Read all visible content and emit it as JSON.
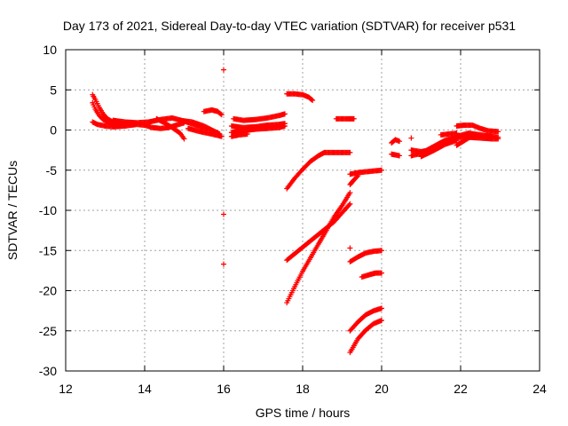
{
  "chart_data": {
    "type": "scatter",
    "title": "Day 173 of 2021, Sidereal Day-to-day VTEC variation (SDTVAR) for receiver p531",
    "xlabel": "GPS time / hours",
    "ylabel": "SDTVAR / TECUs",
    "xlim": [
      12,
      24
    ],
    "ylim": [
      -30,
      10
    ],
    "xticks": [
      12,
      14,
      16,
      18,
      20,
      22,
      24
    ],
    "yticks": [
      -30,
      -25,
      -20,
      -15,
      -10,
      -5,
      0,
      5,
      10
    ],
    "grid": true,
    "marker": "+",
    "color": "#ff0000",
    "segments": [
      [
        [
          12.68,
          4.4
        ],
        [
          12.75,
          3.8
        ],
        [
          12.85,
          2.8
        ],
        [
          12.95,
          2.0
        ],
        [
          13.05,
          1.4
        ],
        [
          13.2,
          1.0
        ],
        [
          13.4,
          0.8
        ],
        [
          13.6,
          0.9
        ]
      ],
      [
        [
          12.68,
          3.4
        ],
        [
          12.75,
          2.6
        ],
        [
          12.85,
          1.8
        ],
        [
          12.95,
          1.3
        ],
        [
          13.1,
          0.9
        ],
        [
          13.3,
          0.6
        ],
        [
          13.5,
          0.5
        ]
      ],
      [
        [
          12.68,
          1.0
        ],
        [
          12.8,
          0.7
        ],
        [
          13.0,
          0.5
        ],
        [
          13.2,
          0.4
        ],
        [
          13.5,
          0.5
        ],
        [
          13.8,
          0.7
        ],
        [
          14.0,
          0.6
        ],
        [
          14.2,
          0.3
        ],
        [
          14.4,
          0.2
        ],
        [
          14.6,
          0.3
        ],
        [
          14.8,
          0.6
        ],
        [
          15.0,
          0.9
        ]
      ],
      [
        [
          13.2,
          1.2
        ],
        [
          13.5,
          1.0
        ],
        [
          13.8,
          0.9
        ],
        [
          14.1,
          1.0
        ],
        [
          14.4,
          1.3
        ],
        [
          14.7,
          1.5
        ],
        [
          15.0,
          1.1
        ],
        [
          15.3,
          0.6
        ],
        [
          15.6,
          0.1
        ]
      ],
      [
        [
          14.3,
          1.4
        ],
        [
          14.5,
          0.9
        ],
        [
          14.7,
          0.3
        ],
        [
          14.9,
          -0.4
        ],
        [
          15.0,
          -1.1
        ]
      ],
      [
        [
          14.9,
          1.2
        ],
        [
          15.2,
          1.0
        ],
        [
          15.5,
          0.5
        ],
        [
          15.7,
          0.0
        ],
        [
          15.9,
          -0.5
        ]
      ],
      [
        [
          15.1,
          0.2
        ],
        [
          15.4,
          -0.2
        ],
        [
          15.7,
          -0.5
        ],
        [
          15.95,
          -0.8
        ]
      ],
      [
        [
          15.5,
          2.3
        ],
        [
          15.7,
          2.5
        ],
        [
          15.85,
          2.3
        ],
        [
          15.95,
          1.9
        ]
      ],
      [
        [
          16.0,
          7.5
        ]
      ],
      [
        [
          16.0,
          -10.5
        ]
      ],
      [
        [
          16.0,
          -16.7
        ]
      ],
      [
        [
          16.25,
          1.4
        ],
        [
          16.5,
          1.2
        ],
        [
          16.8,
          1.3
        ],
        [
          17.1,
          1.5
        ],
        [
          17.4,
          1.8
        ],
        [
          17.55,
          2.0
        ]
      ],
      [
        [
          16.2,
          0.5
        ],
        [
          16.5,
          0.3
        ],
        [
          16.8,
          0.4
        ],
        [
          17.1,
          0.6
        ],
        [
          17.4,
          0.7
        ],
        [
          17.55,
          0.8
        ]
      ],
      [
        [
          16.2,
          -0.3
        ],
        [
          16.5,
          -0.1
        ],
        [
          16.8,
          0.1
        ],
        [
          17.1,
          0.2
        ],
        [
          17.4,
          0.3
        ],
        [
          17.55,
          0.5
        ]
      ],
      [
        [
          16.2,
          -0.8
        ],
        [
          16.4,
          -0.6
        ],
        [
          16.6,
          -0.5
        ]
      ],
      [
        [
          17.6,
          4.5
        ],
        [
          17.8,
          4.5
        ],
        [
          18.0,
          4.4
        ],
        [
          18.15,
          4.1
        ],
        [
          18.25,
          3.7
        ]
      ],
      [
        [
          17.6,
          -7.3
        ],
        [
          17.8,
          -6.0
        ],
        [
          18.0,
          -4.9
        ],
        [
          18.2,
          -3.9
        ],
        [
          18.4,
          -3.2
        ],
        [
          18.55,
          -2.8
        ],
        [
          18.8,
          -2.8
        ],
        [
          19.0,
          -2.8
        ],
        [
          19.2,
          -2.8
        ]
      ],
      [
        [
          17.6,
          -16.2
        ],
        [
          17.9,
          -15.0
        ],
        [
          18.2,
          -13.8
        ],
        [
          18.5,
          -12.6
        ],
        [
          18.8,
          -11.4
        ],
        [
          19.0,
          -10.3
        ],
        [
          19.2,
          -9.2
        ]
      ],
      [
        [
          17.6,
          -21.5
        ],
        [
          17.8,
          -19.5
        ],
        [
          18.0,
          -17.6
        ],
        [
          18.2,
          -15.9
        ],
        [
          18.4,
          -14.2
        ],
        [
          18.6,
          -12.5
        ],
        [
          18.8,
          -10.8
        ],
        [
          19.0,
          -9.4
        ],
        [
          19.2,
          -7.8
        ]
      ],
      [
        [
          18.85,
          1.4
        ],
        [
          19.0,
          1.4
        ],
        [
          19.15,
          1.4
        ],
        [
          19.3,
          1.4
        ]
      ],
      [
        [
          19.2,
          -5.5
        ],
        [
          19.4,
          -5.3
        ],
        [
          19.6,
          -5.2
        ],
        [
          19.8,
          -5.1
        ],
        [
          20.0,
          -5.0
        ]
      ],
      [
        [
          19.2,
          -6.8
        ],
        [
          19.3,
          -6.2
        ],
        [
          19.4,
          -5.7
        ]
      ],
      [
        [
          19.2,
          -14.7
        ]
      ],
      [
        [
          19.2,
          -16.4
        ],
        [
          19.4,
          -15.8
        ],
        [
          19.6,
          -15.3
        ],
        [
          19.8,
          -15.1
        ],
        [
          20.0,
          -15.0
        ]
      ],
      [
        [
          19.5,
          -18.3
        ],
        [
          19.7,
          -18.0
        ],
        [
          19.85,
          -17.8
        ],
        [
          20.0,
          -17.8
        ]
      ],
      [
        [
          19.2,
          -25.0
        ],
        [
          19.4,
          -23.9
        ],
        [
          19.6,
          -23.0
        ],
        [
          19.8,
          -22.5
        ],
        [
          20.0,
          -22.2
        ]
      ],
      [
        [
          19.2,
          -27.7
        ],
        [
          19.4,
          -26.0
        ],
        [
          19.6,
          -24.9
        ],
        [
          19.8,
          -24.1
        ],
        [
          20.0,
          -23.7
        ]
      ],
      [
        [
          20.25,
          -1.6
        ],
        [
          20.35,
          -1.2
        ],
        [
          20.45,
          -1.4
        ]
      ],
      [
        [
          20.25,
          -3.0
        ],
        [
          20.35,
          -3.1
        ],
        [
          20.45,
          -3.2
        ]
      ],
      [
        [
          20.75,
          -1.0
        ]
      ],
      [
        [
          20.75,
          -2.5
        ],
        [
          21.0,
          -2.7
        ],
        [
          21.3,
          -2.4
        ],
        [
          21.6,
          -1.6
        ],
        [
          21.9,
          -0.8
        ],
        [
          22.2,
          -0.4
        ],
        [
          22.5,
          -0.6
        ],
        [
          22.8,
          -0.8
        ],
        [
          22.95,
          -0.9
        ]
      ],
      [
        [
          20.75,
          -3.2
        ],
        [
          21.0,
          -2.9
        ],
        [
          21.3,
          -2.1
        ],
        [
          21.6,
          -1.3
        ],
        [
          21.9,
          -0.9
        ],
        [
          22.2,
          -0.9
        ],
        [
          22.5,
          -1.0
        ],
        [
          22.8,
          -1.1
        ],
        [
          22.95,
          -1.1
        ]
      ],
      [
        [
          21.0,
          -3.3
        ],
        [
          21.3,
          -2.6
        ],
        [
          21.6,
          -1.8
        ],
        [
          21.9,
          -1.3
        ]
      ],
      [
        [
          21.5,
          -0.6
        ],
        [
          21.7,
          -0.5
        ],
        [
          21.9,
          -0.4
        ]
      ],
      [
        [
          21.9,
          0.5
        ],
        [
          22.1,
          0.6
        ],
        [
          22.3,
          0.6
        ],
        [
          22.5,
          0.2
        ],
        [
          22.7,
          -0.1
        ],
        [
          22.95,
          -0.2
        ]
      ],
      [
        [
          21.9,
          -1.9
        ],
        [
          22.1,
          -1.3
        ],
        [
          22.3,
          -0.7
        ]
      ]
    ]
  }
}
